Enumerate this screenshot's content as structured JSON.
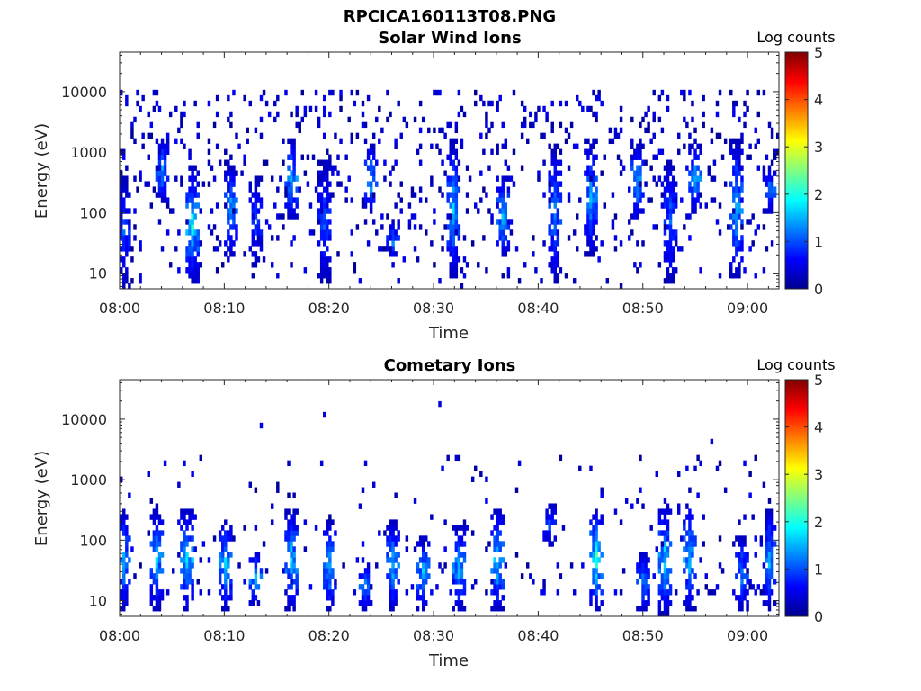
{
  "figure": {
    "title": "RPCICA160113T08.PNG"
  },
  "colorbar": {
    "label": "Log counts",
    "ticks": [
      "0",
      "1",
      "2",
      "3",
      "4",
      "5"
    ],
    "range": [
      0,
      5
    ],
    "colormap": "jet"
  },
  "chart_data": [
    {
      "type": "heatmap",
      "title": "Solar Wind Ions",
      "xlabel": "Time",
      "ylabel": "Energy (eV)",
      "x_range": [
        "08:00",
        "09:03"
      ],
      "x_ticks": [
        "08:00",
        "08:10",
        "08:20",
        "08:30",
        "08:40",
        "08:50",
        "09:00"
      ],
      "y_scale": "log",
      "y_range": [
        5.5,
        45000
      ],
      "y_ticks": [
        "10",
        "100",
        "1000",
        "10000"
      ],
      "grid": false,
      "colorbar_label": "Log counts",
      "colorbar_range": [
        0,
        5
      ],
      "bursts": [
        {
          "time": "08:00:30",
          "emin": 6,
          "emax": 400,
          "peak": 1.2
        },
        {
          "time": "08:04:00",
          "emin": 150,
          "emax": 1600,
          "peak": 1.8
        },
        {
          "time": "08:07:00",
          "emin": 8,
          "emax": 500,
          "peak": 2.3
        },
        {
          "time": "08:10:30",
          "emin": 20,
          "emax": 600,
          "peak": 1.9
        },
        {
          "time": "08:13:00",
          "emin": 15,
          "emax": 400,
          "peak": 1.2
        },
        {
          "time": "08:16:30",
          "emin": 80,
          "emax": 1500,
          "peak": 1.9
        },
        {
          "time": "08:19:30",
          "emin": 8,
          "emax": 700,
          "peak": 1.3
        },
        {
          "time": "08:24:00",
          "emin": 100,
          "emax": 1300,
          "peak": 1.9
        },
        {
          "time": "08:26:00",
          "emin": 20,
          "emax": 60,
          "peak": 1.6
        },
        {
          "time": "08:32:00",
          "emin": 10,
          "emax": 1500,
          "peak": 1.9
        },
        {
          "time": "08:36:30",
          "emin": 20,
          "emax": 400,
          "peak": 2.0
        },
        {
          "time": "08:41:30",
          "emin": 8,
          "emax": 1200,
          "peak": 1.6
        },
        {
          "time": "08:45:00",
          "emin": 20,
          "emax": 1500,
          "peak": 1.8
        },
        {
          "time": "08:49:30",
          "emin": 80,
          "emax": 1300,
          "peak": 1.9
        },
        {
          "time": "08:52:30",
          "emin": 8,
          "emax": 700,
          "peak": 1.4
        },
        {
          "time": "08:55:00",
          "emin": 100,
          "emax": 1300,
          "peak": 1.8
        },
        {
          "time": "08:59:00",
          "emin": 10,
          "emax": 1400,
          "peak": 1.9
        },
        {
          "time": "09:02:00",
          "emin": 100,
          "emax": 500,
          "peak": 1.5
        }
      ]
    },
    {
      "type": "heatmap",
      "title": "Cometary Ions",
      "xlabel": "Time",
      "ylabel": "Energy (eV)",
      "x_range": [
        "08:00",
        "09:03"
      ],
      "x_ticks": [
        "08:00",
        "08:10",
        "08:20",
        "08:30",
        "08:40",
        "08:50",
        "09:00"
      ],
      "y_scale": "log",
      "y_range": [
        5.5,
        45000
      ],
      "y_ticks": [
        "10",
        "100",
        "1000",
        "10000"
      ],
      "grid": false,
      "colorbar_label": "Log counts",
      "colorbar_range": [
        0,
        5
      ],
      "bursts": [
        {
          "time": "08:00:30",
          "emin": 8,
          "emax": 300,
          "peak": 1.8
        },
        {
          "time": "08:03:30",
          "emin": 8,
          "emax": 300,
          "peak": 1.9
        },
        {
          "time": "08:06:30",
          "emin": 8,
          "emax": 300,
          "peak": 2.3
        },
        {
          "time": "08:10:00",
          "emin": 8,
          "emax": 200,
          "peak": 2.0
        },
        {
          "time": "08:13:00",
          "emin": 10,
          "emax": 60,
          "peak": 2.0
        },
        {
          "time": "08:16:30",
          "emin": 8,
          "emax": 300,
          "peak": 2.1
        },
        {
          "time": "08:20:00",
          "emin": 8,
          "emax": 200,
          "peak": 1.9
        },
        {
          "time": "08:23:30",
          "emin": 8,
          "emax": 40,
          "peak": 1.6
        },
        {
          "time": "08:26:00",
          "emin": 8,
          "emax": 200,
          "peak": 2.0
        },
        {
          "time": "08:29:00",
          "emin": 8,
          "emax": 100,
          "peak": 1.9
        },
        {
          "time": "08:32:30",
          "emin": 8,
          "emax": 150,
          "peak": 2.0
        },
        {
          "time": "08:36:00",
          "emin": 8,
          "emax": 300,
          "peak": 2.2
        },
        {
          "time": "08:41:00",
          "emin": 80,
          "emax": 400,
          "peak": 1.3
        },
        {
          "time": "08:45:30",
          "emin": 8,
          "emax": 300,
          "peak": 2.5
        },
        {
          "time": "08:50:00",
          "emin": 8,
          "emax": 60,
          "peak": 1.6
        },
        {
          "time": "08:52:00",
          "emin": 6,
          "emax": 400,
          "peak": 2.1
        },
        {
          "time": "08:54:30",
          "emin": 8,
          "emax": 400,
          "peak": 2.1
        },
        {
          "time": "08:59:30",
          "emin": 8,
          "emax": 100,
          "peak": 1.6
        },
        {
          "time": "09:02:00",
          "emin": 8,
          "emax": 300,
          "peak": 1.8
        }
      ],
      "isolated_points": [
        {
          "time": "08:13:30",
          "energy": 7500,
          "level": 0.5
        },
        {
          "time": "08:19:30",
          "energy": 11000,
          "level": 0.5
        },
        {
          "time": "08:30:30",
          "energy": 17000,
          "level": 0.4
        },
        {
          "time": "08:56:30",
          "energy": 4500,
          "level": 0.4
        }
      ]
    }
  ]
}
